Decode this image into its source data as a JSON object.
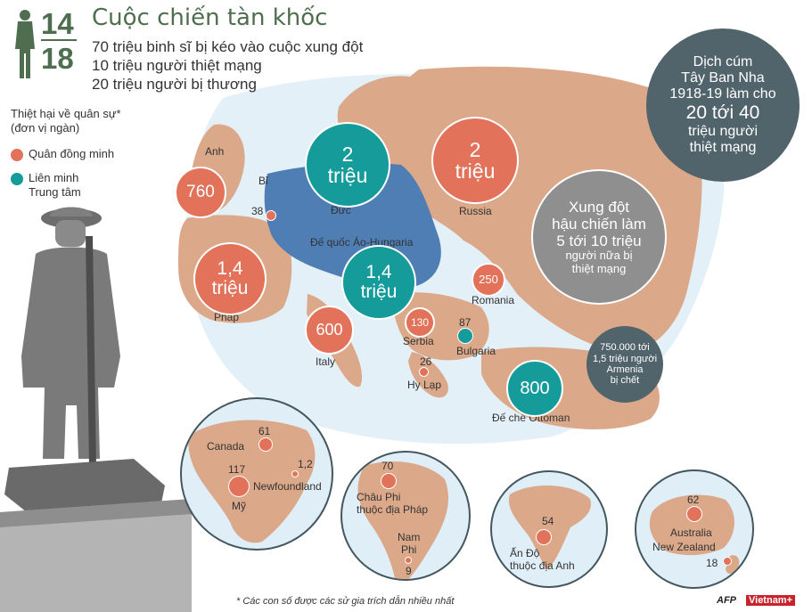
{
  "logo": {
    "top": "14",
    "bottom": "18"
  },
  "header": {
    "title": "Cuộc chiến tàn khốc",
    "lines": [
      "70 triệu binh sĩ bị kéo vào cuộc xung đột",
      "10 triệu người thiệt mạng",
      "20 triệu người bị thương"
    ]
  },
  "legend": {
    "title_line1": "Thiệt hại về quân sự*",
    "title_line2": "(đơn vị ngàn)",
    "allies": "Quân đồng minh",
    "central_line1": "Liên minh",
    "central_line2": "Trung tâm"
  },
  "colors": {
    "allies": "#e2725a",
    "central": "#169b9b",
    "land": "#dba98a",
    "sea": "#e3f0f8",
    "central_land": "#4f7eb5",
    "info_dark": "#51636b",
    "info_gray": "#8f8f8f",
    "logo_green": "#4f6e4f"
  },
  "countries": {
    "anh": {
      "label": "Anh",
      "value": "760"
    },
    "bi": {
      "label": "Bỉ",
      "value": "38"
    },
    "phap": {
      "label": "Pháp",
      "value_line1": "1,4",
      "value_line2": "triệu"
    },
    "duc": {
      "label": "Đức",
      "value_line1": "2",
      "value_line2": "triệu"
    },
    "russia": {
      "label": "Russia",
      "value_line1": "2",
      "value_line2": "triệu"
    },
    "austria": {
      "label": "Đế quốc Áo-Hungaria",
      "value_line1": "1,4",
      "value_line2": "triệu"
    },
    "italy": {
      "label": "Italy",
      "value": "600"
    },
    "serbia": {
      "label": "Serbia",
      "value": "130"
    },
    "romania": {
      "label": "Romania",
      "value": "250"
    },
    "bulgaria": {
      "label": "Bulgaria",
      "value": "87"
    },
    "hylap": {
      "label": "Hy Lạp",
      "value": "26"
    },
    "ottoman": {
      "label": "Đế chế Ottoman",
      "value": "800"
    }
  },
  "info_boxes": {
    "flu": {
      "line1": "Dịch cúm",
      "line2": "Tây Ban Nha",
      "line3": "1918-19 làm cho",
      "line4": "20 tới 40",
      "line5": "triệu người",
      "line6": "thiệt mạng"
    },
    "postwar": {
      "line1": "Xung đột",
      "line2": "hậu chiến làm",
      "line3": "5 tới 10 triệu",
      "line4": "người nữa bị",
      "line5": "thiệt mạng"
    },
    "armenia": {
      "line1": "750.000 tới",
      "line2": "1,5 triệu người",
      "line3": "Armenia",
      "line4": "bị chết"
    }
  },
  "insets": {
    "america": {
      "canada_label": "Canada",
      "canada_value": "61",
      "usa_label": "Mỹ",
      "usa_value": "117",
      "nf_label": "Newfoundland",
      "nf_value": "1,2"
    },
    "africa": {
      "value": "70",
      "label_line1": "Châu Phi",
      "label_line2": "thuộc địa Pháp",
      "sa_line1": "Nam",
      "sa_line2": "Phi",
      "sa_value": "9"
    },
    "india": {
      "value": "54",
      "label_line1": "Ấn Độ",
      "label_line2": "thuộc địa Anh"
    },
    "oceania": {
      "au_value": "62",
      "au_label": "Australia",
      "nz_label": "New Zealand",
      "nz_value": "18"
    }
  },
  "footnote": "* Các con số được các sử gia trích dẫn nhiều nhất",
  "credits": {
    "afp": "AFP",
    "vietnam": "Vietnam+"
  }
}
